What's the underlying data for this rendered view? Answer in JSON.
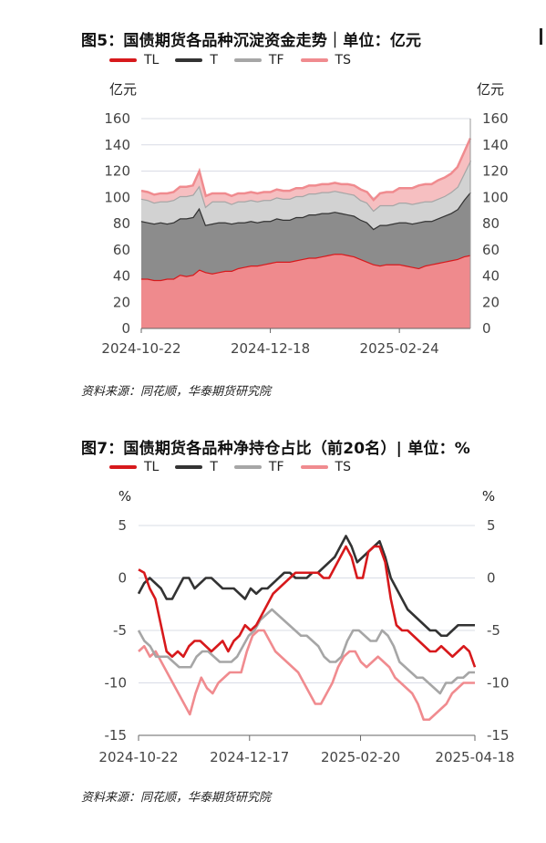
{
  "colors": {
    "TL": "#d7191c",
    "T": "#333333",
    "TF": "#a6a6a6",
    "TS": "#f08b8f"
  },
  "chart_data": [
    {
      "type": "area",
      "title": "图5：国债期货各品种沉淀资金走势｜单位：亿元",
      "unit_left": "亿元",
      "unit_right": "亿元",
      "x_ticks": [
        "2024-10-22",
        "2024-12-18",
        "2025-02-24"
      ],
      "ylim": [
        0,
        160
      ],
      "y_ticks": [
        0,
        20,
        40,
        60,
        80,
        100,
        120,
        140,
        160
      ],
      "stacked": true,
      "grid": true,
      "legend": "top-left",
      "series": [
        {
          "name": "TL",
          "values": [
            38,
            38,
            37,
            37,
            38,
            38,
            41,
            40,
            41,
            45,
            43,
            42,
            43,
            44,
            44,
            46,
            47,
            48,
            48,
            49,
            50,
            51,
            51,
            51,
            52,
            53,
            54,
            54,
            55,
            56,
            57,
            57,
            56,
            55,
            53,
            51,
            49,
            48,
            49,
            49,
            49,
            48,
            47,
            46,
            48,
            49,
            50,
            51,
            52,
            53,
            55,
            56
          ]
        },
        {
          "name": "T",
          "values": [
            44,
            43,
            43,
            44,
            42,
            43,
            43,
            44,
            44,
            47,
            36,
            38,
            38,
            37,
            36,
            35,
            34,
            34,
            33,
            33,
            32,
            33,
            32,
            32,
            33,
            32,
            33,
            33,
            33,
            32,
            32,
            31,
            31,
            31,
            30,
            30,
            27,
            31,
            30,
            31,
            32,
            33,
            33,
            35,
            34,
            33,
            34,
            35,
            36,
            38,
            43,
            48
          ]
        },
        {
          "name": "TF",
          "values": [
            17,
            17,
            16,
            16,
            17,
            17,
            17,
            17,
            17,
            17,
            14,
            17,
            16,
            16,
            15,
            16,
            16,
            16,
            16,
            16,
            16,
            16,
            16,
            16,
            16,
            16,
            16,
            16,
            16,
            16,
            16,
            16,
            16,
            16,
            15,
            15,
            14,
            15,
            15,
            14,
            15,
            15,
            15,
            15,
            15,
            15,
            15,
            15,
            16,
            17,
            20,
            24
          ]
        },
        {
          "name": "TS",
          "values": [
            6,
            6,
            6,
            6,
            6,
            6,
            7,
            7,
            7,
            11,
            8,
            6,
            6,
            6,
            6,
            6,
            6,
            6,
            6,
            6,
            6,
            6,
            6,
            6,
            6,
            6,
            6,
            6,
            6,
            6,
            6,
            6,
            7,
            7,
            8,
            8,
            8,
            9,
            10,
            10,
            11,
            11,
            12,
            13,
            13,
            13,
            14,
            14,
            14,
            15,
            16,
            17
          ]
        }
      ]
    },
    {
      "type": "line",
      "title": "图7：国债期货各品种净持仓占比（前20名）| 单位：%",
      "unit_left": "%",
      "unit_right": "%",
      "x_ticks": [
        "2024-10-22",
        "2024-12-17",
        "2025-02-20",
        "2025-04-18"
      ],
      "ylim": [
        -15,
        5
      ],
      "y_ticks": [
        5,
        0,
        -5,
        -10,
        -15
      ],
      "grid": true,
      "legend": "top-left",
      "series": [
        {
          "name": "TL",
          "values": [
            0.8,
            0.5,
            -1,
            -2,
            -4.5,
            -7,
            -7.5,
            -7,
            -7.5,
            -6.5,
            -6,
            -6,
            -6.5,
            -7,
            -6.5,
            -6,
            -7,
            -6,
            -5.5,
            -4.5,
            -5,
            -4.5,
            -3.5,
            -2.5,
            -1.5,
            -1,
            -0.5,
            0,
            0.5,
            0.5,
            0.5,
            0.5,
            0.5,
            0,
            0,
            1,
            2,
            3,
            2,
            0,
            0,
            2.5,
            3,
            3,
            1.5,
            -2,
            -4.5,
            -5,
            -5,
            -5.5,
            -6,
            -6.5,
            -7,
            -7,
            -6.5,
            -7,
            -7.5,
            -7,
            -6.5,
            -7,
            -8.5
          ]
        },
        {
          "name": "T",
          "values": [
            -1.5,
            -0.5,
            0,
            -0.5,
            -1,
            -2,
            -2,
            -1,
            0,
            0,
            -1,
            -0.5,
            0,
            0,
            -0.5,
            -1,
            -1,
            -1,
            -1.5,
            -2,
            -1,
            -1.5,
            -1,
            -1,
            -0.5,
            0,
            0.5,
            0.5,
            0,
            0,
            0,
            0.5,
            0.5,
            1,
            1.5,
            2,
            3,
            4,
            3,
            1.5,
            2,
            2.5,
            3,
            3.5,
            2,
            0,
            -1,
            -2,
            -3,
            -3.5,
            -4,
            -4.5,
            -5,
            -5,
            -5.5,
            -5.5,
            -5,
            -4.5,
            -4.5,
            -4.5,
            -4.5
          ]
        },
        {
          "name": "TF",
          "values": [
            -5,
            -6,
            -6.5,
            -7.5,
            -7.5,
            -7.5,
            -8,
            -8.5,
            -8.5,
            -8.5,
            -7.5,
            -7,
            -7,
            -7.5,
            -8,
            -8,
            -8,
            -7.5,
            -6.5,
            -5.5,
            -5,
            -4,
            -3.5,
            -3,
            -3.5,
            -4,
            -4.5,
            -5,
            -5.5,
            -5.5,
            -6,
            -6.5,
            -7.5,
            -8,
            -8,
            -7.5,
            -6,
            -5,
            -5,
            -5.5,
            -6,
            -6,
            -5,
            -5.5,
            -6.5,
            -8,
            -8.5,
            -9,
            -9.5,
            -9.5,
            -10,
            -10.5,
            -11,
            -10,
            -10,
            -9.5,
            -9.5,
            -9,
            -9
          ]
        },
        {
          "name": "TS",
          "values": [
            -7,
            -6.5,
            -7.5,
            -7,
            -8,
            -9,
            -10,
            -11,
            -12,
            -13,
            -11,
            -9.5,
            -10.5,
            -11,
            -10,
            -9.5,
            -9,
            -9,
            -9,
            -7,
            -5.5,
            -5,
            -5,
            -6,
            -7,
            -7.5,
            -8,
            -8.5,
            -9,
            -10,
            -11,
            -12,
            -12,
            -11,
            -10,
            -8.5,
            -7.5,
            -7,
            -7,
            -8,
            -8.5,
            -8,
            -7.5,
            -8,
            -8.5,
            -9.5,
            -10,
            -10.5,
            -11,
            -12,
            -13.5,
            -13.5,
            -13,
            -12.5,
            -12,
            -11,
            -10.5,
            -10,
            -10,
            -10
          ]
        }
      ]
    }
  ],
  "panel1": {
    "title": "图5：国债期货各品种沉淀资金走势｜单位：亿元",
    "source": "资料来源：同花顺，华泰期货研究院",
    "legend": [
      "TL",
      "T",
      "TF",
      "TS"
    ]
  },
  "panel2": {
    "title": "图7：国债期货各品种净持仓占比（前20名）| 单位：%",
    "source": "资料来源：同花顺，华泰期货研究院",
    "legend": [
      "TL",
      "T",
      "TF",
      "TS"
    ]
  }
}
